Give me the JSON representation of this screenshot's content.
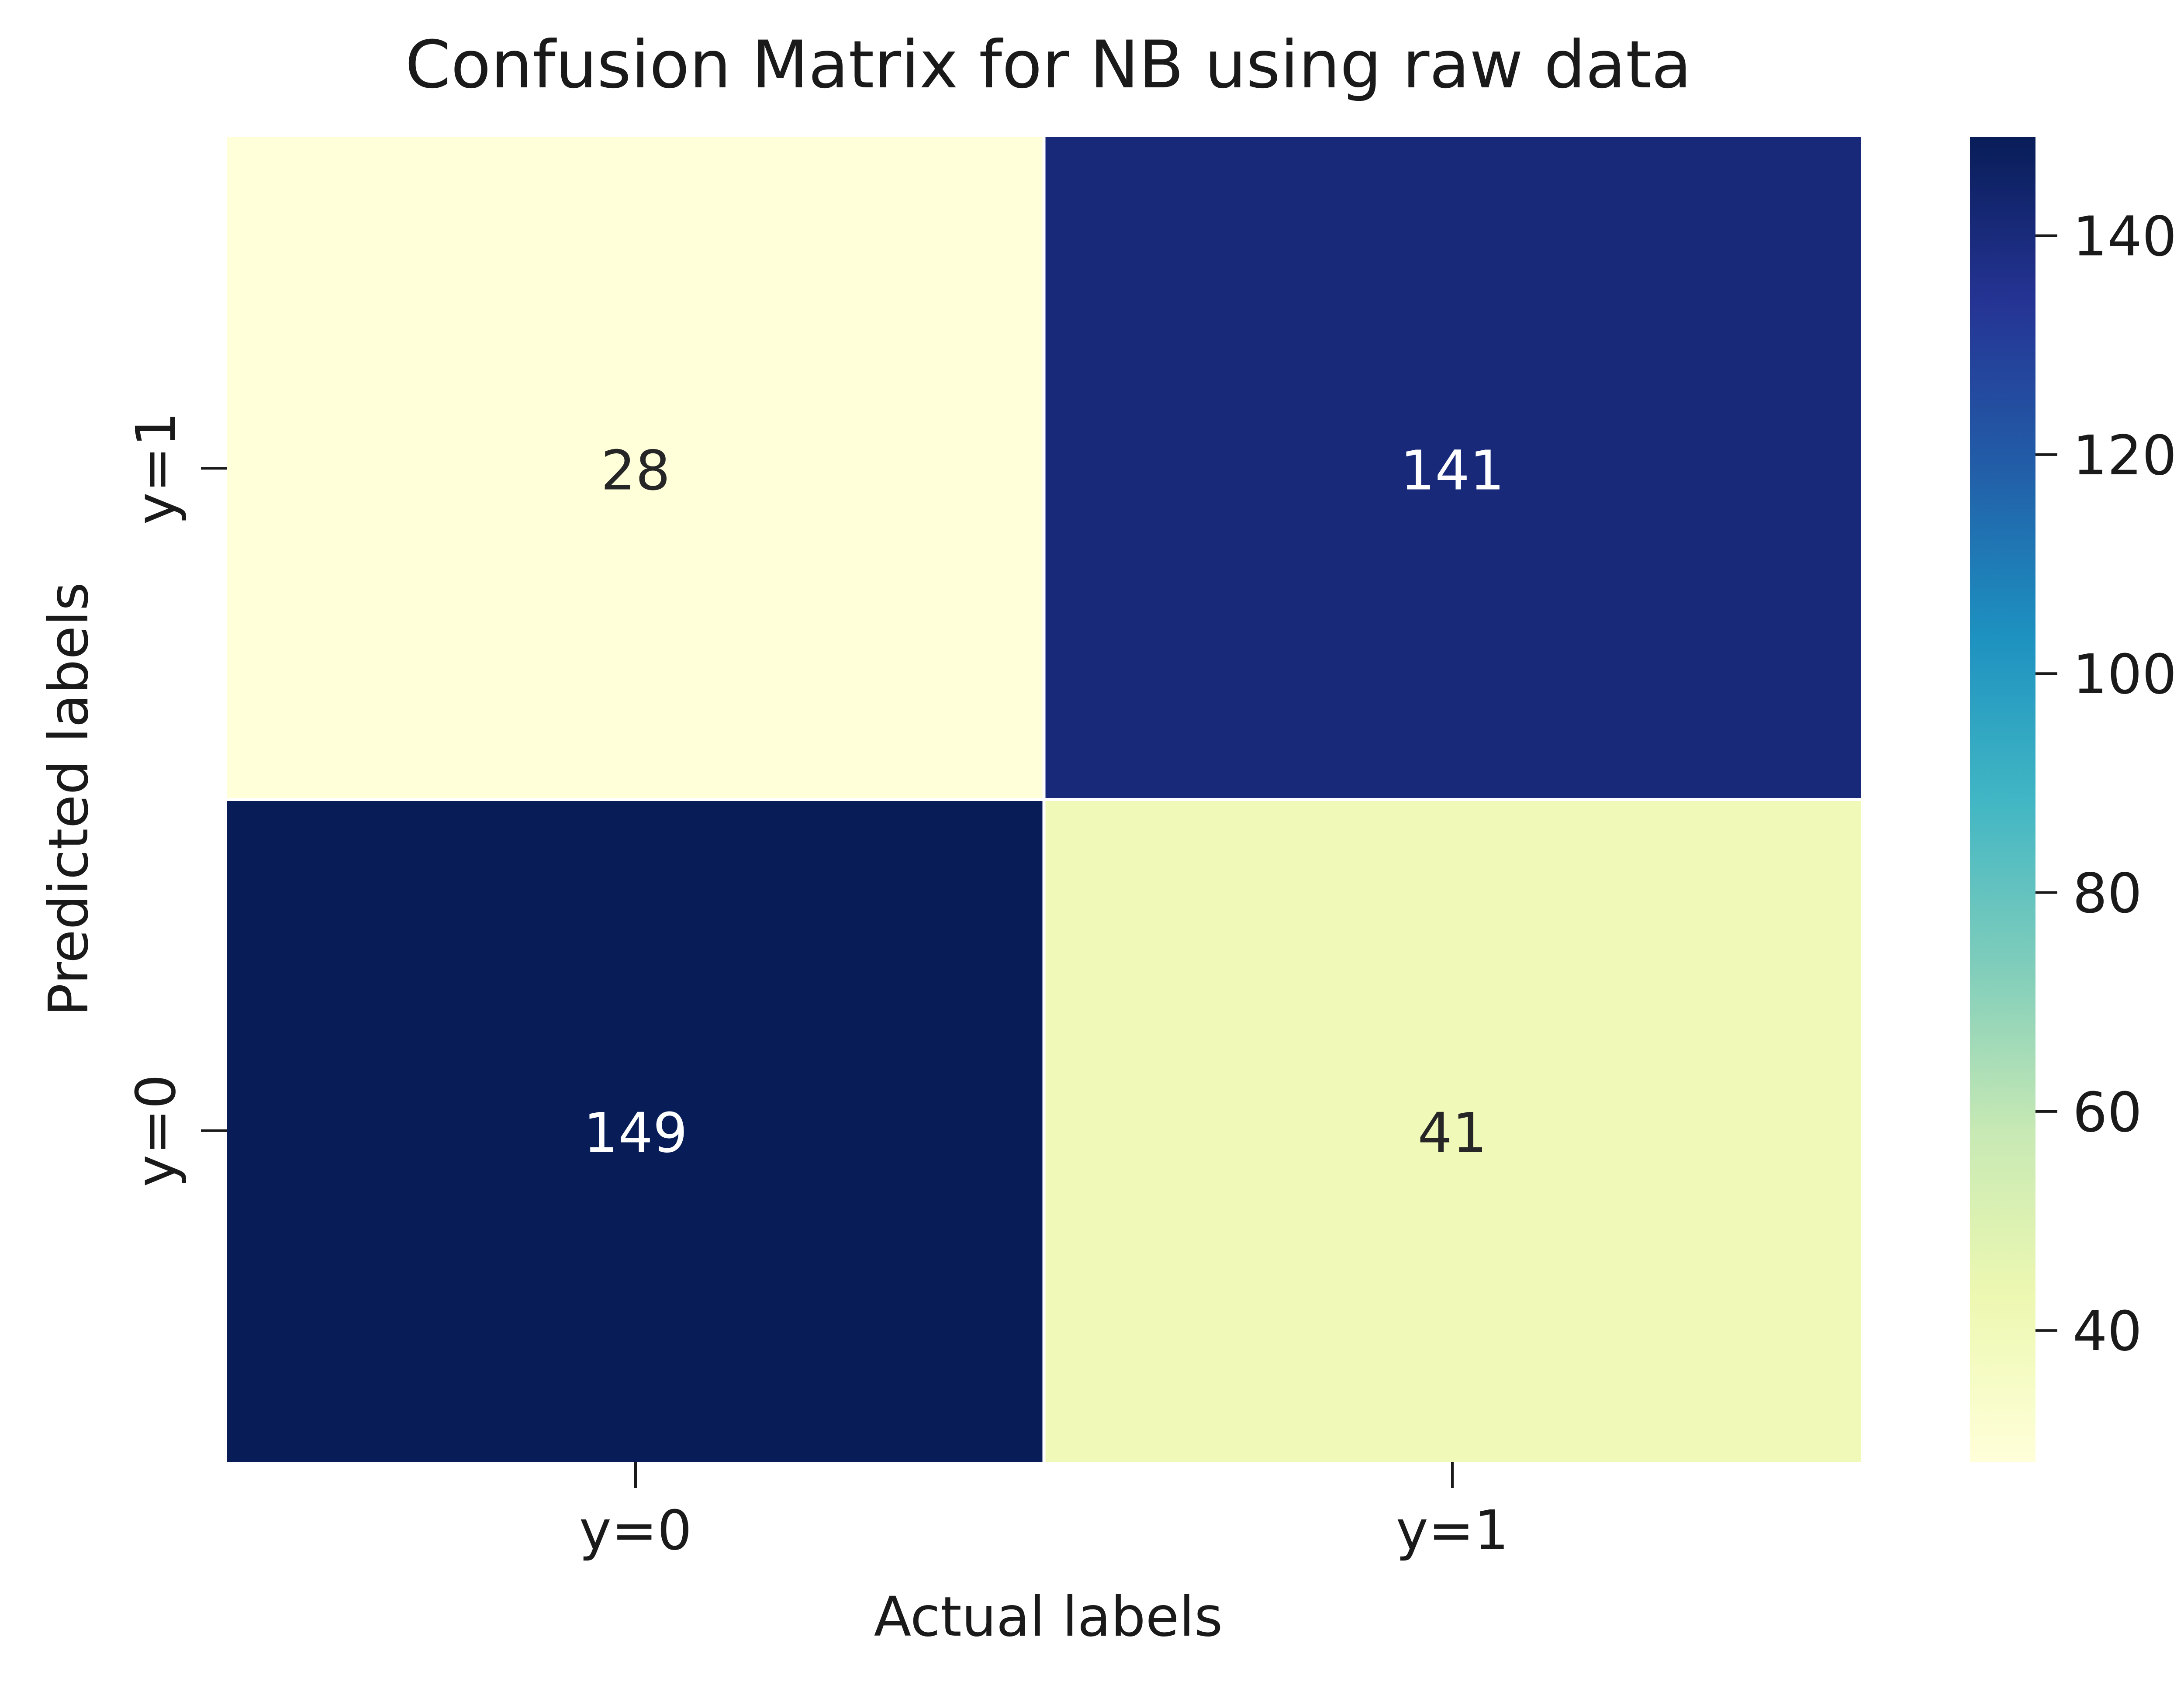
{
  "chart_data": {
    "type": "heatmap",
    "title": "Confusion Matrix for NB using raw data",
    "xlabel": "Actual labels",
    "ylabel": "Predicted labels",
    "x_categories": [
      "y=0",
      "y=1"
    ],
    "y_categories_top_to_bottom": [
      "y=1",
      "y=0"
    ],
    "matrix_top_to_bottom": [
      [
        28,
        141
      ],
      [
        149,
        41
      ]
    ],
    "colormap": "YlGnBu",
    "vmin": 28,
    "vmax": 149,
    "colorbar": {
      "ticks": [
        40,
        60,
        80,
        100,
        120,
        140
      ]
    },
    "grid": false
  }
}
